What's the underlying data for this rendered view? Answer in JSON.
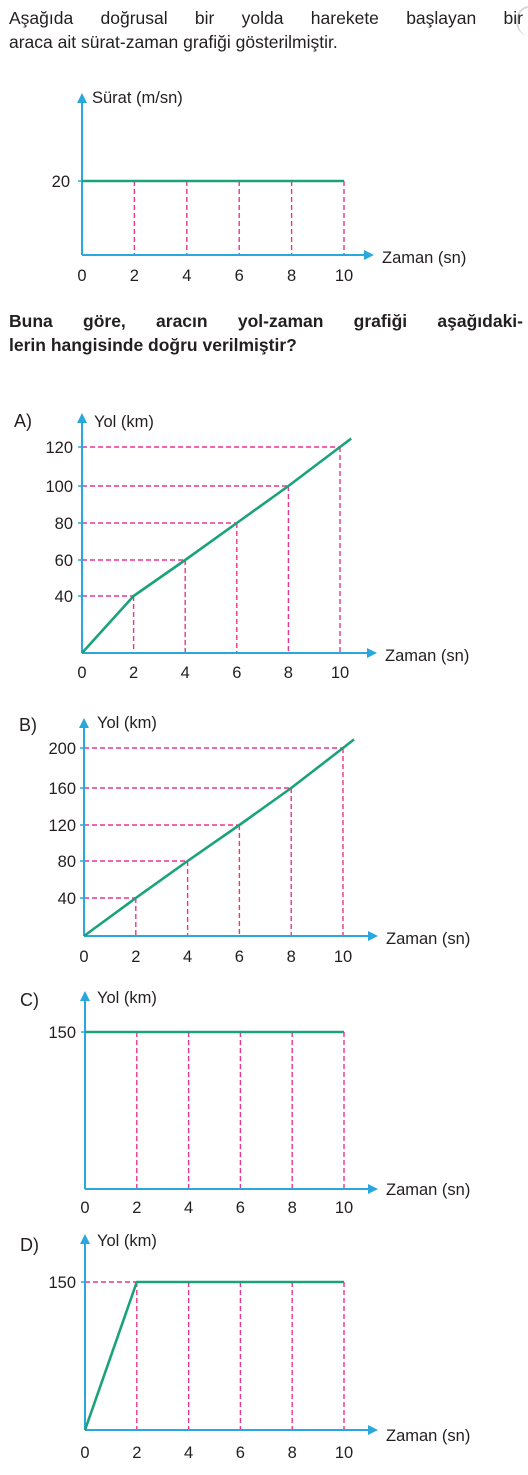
{
  "intro": {
    "line1": "Aşağıda doğrusal bir yolda harekete başlayan bir",
    "line2": "araca ait sürat-zaman grafiği gösterilmiştir."
  },
  "question": {
    "line1": "Buna göre, aracın yol-zaman grafiği aşağıdaki-",
    "line2": "lerin hangisinde doğru verilmiştir?"
  },
  "colors": {
    "axis": "#2aa8dd",
    "line": "#1aa37a",
    "guide": "#e8358f",
    "text": "#231f20"
  },
  "chart_data": [
    {
      "id": "given",
      "option": "",
      "type": "line",
      "ylabel": "Sürat (m/sn)",
      "xlabel": "Zaman (sn)",
      "x_ticks": [
        "0",
        "2",
        "4",
        "6",
        "8",
        "10"
      ],
      "y_ticks": [
        "20"
      ],
      "y_tick_values": [
        20
      ],
      "xlim": [
        0,
        10
      ],
      "ylim": [
        0,
        30
      ],
      "series": [
        {
          "x": [
            0,
            10
          ],
          "y": [
            20,
            20
          ]
        }
      ]
    },
    {
      "id": "a",
      "option": "A)",
      "type": "line",
      "ylabel": "Yol (km)",
      "xlabel": "Zaman (sn)",
      "x_ticks": [
        "0",
        "2",
        "4",
        "6",
        "8",
        "10"
      ],
      "y_ticks": [
        "40",
        "60",
        "80",
        "100",
        "120"
      ],
      "y_tick_values": [
        40,
        60,
        80,
        100,
        120
      ],
      "xlim": [
        0,
        10
      ],
      "ylim": [
        0,
        130
      ],
      "series": [
        {
          "x": [
            0,
            2,
            4,
            6,
            8,
            10
          ],
          "y": [
            0,
            40,
            60,
            80,
            100,
            120
          ]
        }
      ]
    },
    {
      "id": "b",
      "option": "B)",
      "type": "line",
      "ylabel": "Yol (km)",
      "xlabel": "Zaman (sn)",
      "x_ticks": [
        "0",
        "2",
        "4",
        "6",
        "8",
        "10"
      ],
      "y_ticks": [
        "40",
        "80",
        "120",
        "160",
        "200"
      ],
      "y_tick_values": [
        40,
        80,
        120,
        160,
        200
      ],
      "xlim": [
        0,
        10
      ],
      "ylim": [
        0,
        215
      ],
      "series": [
        {
          "x": [
            0,
            2,
            4,
            6,
            8,
            10
          ],
          "y": [
            0,
            40,
            80,
            120,
            160,
            200
          ]
        }
      ]
    },
    {
      "id": "c",
      "option": "C)",
      "type": "line",
      "ylabel": "Yol (km)",
      "xlabel": "Zaman (sn)",
      "x_ticks": [
        "0",
        "2",
        "4",
        "6",
        "8",
        "10"
      ],
      "y_ticks": [
        "150"
      ],
      "y_tick_values": [
        150
      ],
      "xlim": [
        0,
        10
      ],
      "ylim": [
        0,
        165
      ],
      "series": [
        {
          "x": [
            0,
            10
          ],
          "y": [
            150,
            150
          ]
        }
      ]
    },
    {
      "id": "d",
      "option": "D)",
      "type": "line",
      "ylabel": "Yol (km)",
      "xlabel": "Zaman (sn)",
      "x_ticks": [
        "0",
        "2",
        "4",
        "6",
        "8",
        "10"
      ],
      "y_ticks": [
        "150"
      ],
      "y_tick_values": [
        150
      ],
      "xlim": [
        0,
        10
      ],
      "ylim": [
        0,
        165
      ],
      "series": [
        {
          "x": [
            0,
            2,
            10
          ],
          "y": [
            0,
            150,
            150
          ]
        }
      ]
    }
  ]
}
